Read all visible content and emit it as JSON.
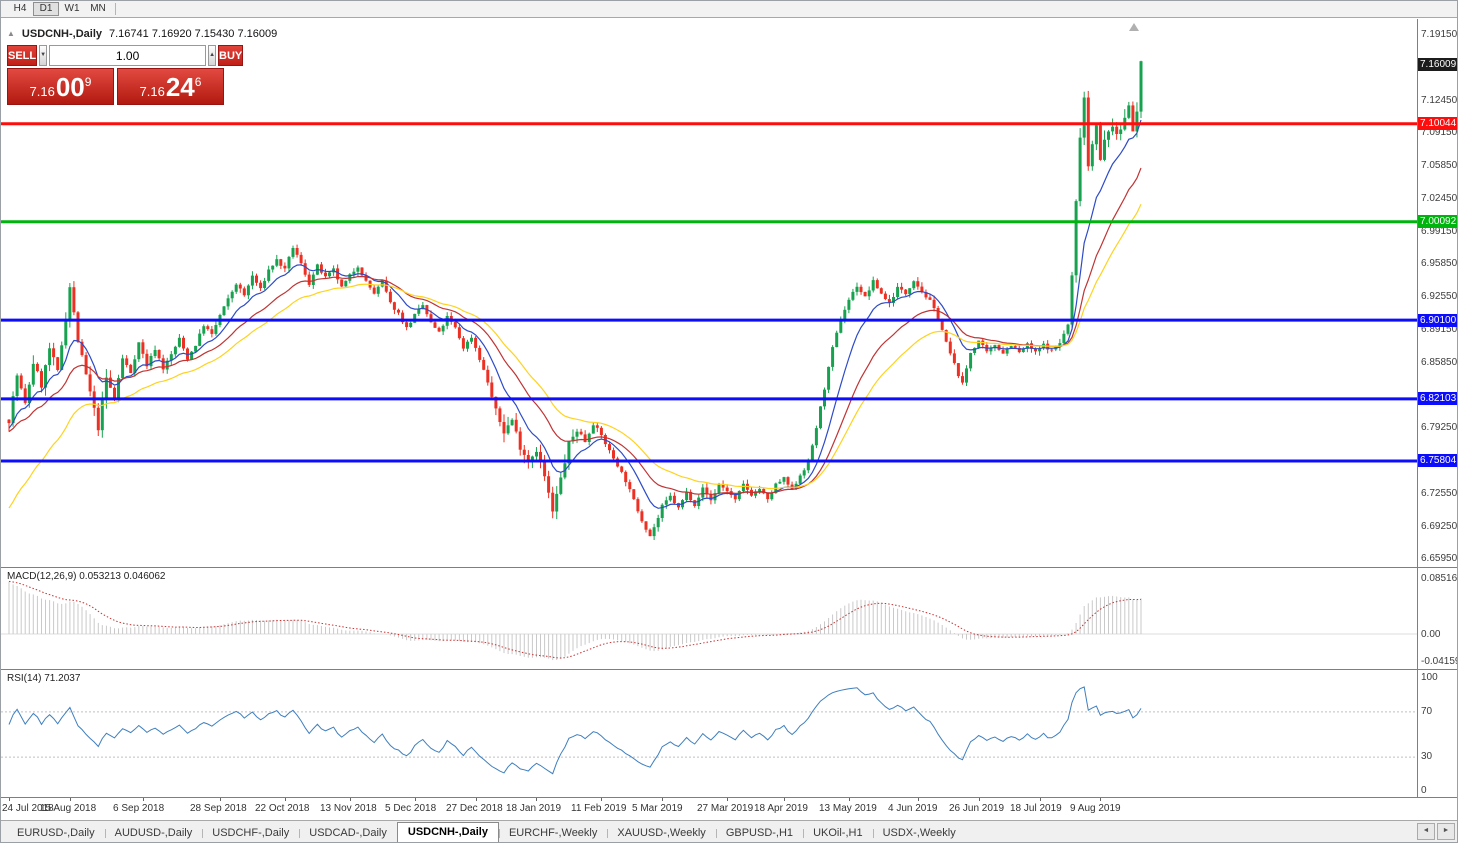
{
  "toolbar": {
    "timeframes": [
      {
        "label": "H4",
        "active": false
      },
      {
        "label": "D1",
        "active": true
      },
      {
        "label": "W1",
        "active": false
      },
      {
        "label": "MN",
        "active": false
      }
    ]
  },
  "icons": {
    "collapse_arrow": "▲",
    "spin_down": "▼",
    "spin_up": "▲",
    "tab_scroll_left": "◄",
    "tab_scroll_right": "►"
  },
  "quote_header": {
    "symbol": "USDCNH-,Daily",
    "ohlc": "7.16741 7.16920 7.15430 7.16009"
  },
  "trade_panel": {
    "sell_label": "SELL",
    "buy_label": "BUY",
    "volume": "1.00",
    "sell_price": {
      "prefix": "7.16",
      "big": "00",
      "sup": "9"
    },
    "buy_price": {
      "prefix": "7.16",
      "big": "24",
      "sup": "6"
    }
  },
  "price_axis": {
    "labels": [
      {
        "text": "7.19150",
        "price": 7.1915
      },
      {
        "text": "7.12450",
        "price": 7.1245
      },
      {
        "text": "7.09150",
        "price": 7.0915
      },
      {
        "text": "7.05850",
        "price": 7.0585
      },
      {
        "text": "7.02450",
        "price": 7.0245
      },
      {
        "text": "6.99150",
        "price": 6.9915
      },
      {
        "text": "6.95850",
        "price": 6.9585
      },
      {
        "text": "6.92550",
        "price": 6.9255
      },
      {
        "text": "6.89150",
        "price": 6.8915
      },
      {
        "text": "6.85850",
        "price": 6.8585
      },
      {
        "text": "6.79250",
        "price": 6.7925
      },
      {
        "text": "6.72550",
        "price": 6.7255
      },
      {
        "text": "6.69250",
        "price": 6.6925
      },
      {
        "text": "6.65950",
        "price": 6.6595
      }
    ],
    "tags": [
      {
        "text": "7.16009",
        "price": 7.16009,
        "bg": "#1c1c1c"
      },
      {
        "text": "7.10044",
        "price": 7.10044,
        "bg": "#fe0d0d"
      },
      {
        "text": "7.00092",
        "price": 7.00092,
        "bg": "#00b40e"
      },
      {
        "text": "6.90100",
        "price": 6.901,
        "bg": "#0d0dfe"
      },
      {
        "text": "6.82103",
        "price": 6.82103,
        "bg": "#0d0dfe"
      },
      {
        "text": "6.75804",
        "price": 6.75804,
        "bg": "#0d0dfe"
      }
    ]
  },
  "hlines": [
    {
      "price": 7.10044,
      "color": "#fe0d0d",
      "width": 3
    },
    {
      "price": 7.00092,
      "color": "#00b40e",
      "width": 3
    },
    {
      "price": 6.901,
      "color": "#0d0dfe",
      "width": 3
    },
    {
      "price": 6.82103,
      "color": "#0d0dfe",
      "width": 3
    },
    {
      "price": 6.75804,
      "color": "#0d0dfe",
      "width": 3
    }
  ],
  "macd_panel": {
    "label": "MACD(12,26,9) 0.053213 0.046062",
    "axis": [
      {
        "text": "0.085164",
        "value": 0.085164
      },
      {
        "text": "0.00",
        "value": 0
      },
      {
        "text": "-0.04159",
        "value": -0.04159
      }
    ]
  },
  "rsi_panel": {
    "label": "RSI(14) 71.2037",
    "axis": [
      {
        "text": "100",
        "value": 100
      },
      {
        "text": "70",
        "value": 70
      },
      {
        "text": "30",
        "value": 30
      },
      {
        "text": "0",
        "value": 0
      }
    ],
    "levels": [
      70,
      30
    ]
  },
  "time_axis": {
    "ticks": [
      {
        "label": "24 Jul 2018",
        "i": 0
      },
      {
        "label": "15 Aug 2018",
        "i": 15
      },
      {
        "label": "6 Sep 2018",
        "i": 33
      },
      {
        "label": "28 Sep 2018",
        "i": 52
      },
      {
        "label": "22 Oct 2018",
        "i": 68
      },
      {
        "label": "13 Nov 2018",
        "i": 84
      },
      {
        "label": "5 Dec 2018",
        "i": 100
      },
      {
        "label": "27 Dec 2018",
        "i": 115
      },
      {
        "label": "18 Jan 2019",
        "i": 130
      },
      {
        "label": "11 Feb 2019",
        "i": 146
      },
      {
        "label": "5 Mar 2019",
        "i": 161
      },
      {
        "label": "27 Mar 2019",
        "i": 177
      },
      {
        "label": "18 Apr 2019",
        "i": 191
      },
      {
        "label": "13 May 2019",
        "i": 207
      },
      {
        "label": "4 Jun 2019",
        "i": 224
      },
      {
        "label": "26 Jun 2019",
        "i": 239
      },
      {
        "label": "18 Jul 2019",
        "i": 254
      },
      {
        "label": "9 Aug 2019",
        "i": 269
      }
    ]
  },
  "tabs": [
    {
      "label": "EURUSD-,Daily",
      "active": false
    },
    {
      "label": "AUDUSD-,Daily",
      "active": false
    },
    {
      "label": "USDCHF-,Daily",
      "active": false
    },
    {
      "label": "USDCAD-,Daily",
      "active": false
    },
    {
      "label": "USDCNH-,Daily",
      "active": true
    },
    {
      "label": "EURCHF-,Weekly",
      "active": false
    },
    {
      "label": "XAUUSD-,Weekly",
      "active": false
    },
    {
      "label": "GBPUSD-,H1",
      "active": false
    },
    {
      "label": "UKOil-,H1",
      "active": false
    },
    {
      "label": "USDX-,Weekly",
      "active": false
    }
  ],
  "chart_data": {
    "type": "candlestick",
    "symbol": "USDCNH-",
    "timeframe": "Daily",
    "last_ohlc": {
      "open": 7.16741,
      "high": 7.1692,
      "low": 7.1543,
      "close": 7.16009
    },
    "bar_count": 280,
    "y_axis_range": [
      6.6504,
      7.2067
    ],
    "colors": {
      "up": "#17a24f",
      "down": "#ec3124"
    },
    "close_anchors": [
      [
        0,
        6.8
      ],
      [
        2,
        6.845
      ],
      [
        4,
        6.815
      ],
      [
        6,
        6.858
      ],
      [
        8,
        6.835
      ],
      [
        10,
        6.872
      ],
      [
        12,
        6.848
      ],
      [
        14,
        6.905
      ],
      [
        15,
        6.935
      ],
      [
        17,
        6.88
      ],
      [
        19,
        6.845
      ],
      [
        22,
        6.792
      ],
      [
        24,
        6.842
      ],
      [
        26,
        6.822
      ],
      [
        28,
        6.862
      ],
      [
        30,
        6.848
      ],
      [
        32,
        6.878
      ],
      [
        34,
        6.855
      ],
      [
        36,
        6.872
      ],
      [
        38,
        6.852
      ],
      [
        40,
        6.866
      ],
      [
        42,
        6.882
      ],
      [
        44,
        6.862
      ],
      [
        46,
        6.876
      ],
      [
        48,
        6.896
      ],
      [
        50,
        6.886
      ],
      [
        52,
        6.906
      ],
      [
        54,
        6.922
      ],
      [
        56,
        6.938
      ],
      [
        58,
        6.926
      ],
      [
        60,
        6.946
      ],
      [
        62,
        6.932
      ],
      [
        64,
        6.952
      ],
      [
        66,
        6.962
      ],
      [
        68,
        6.952
      ],
      [
        70,
        6.975
      ],
      [
        72,
        6.958
      ],
      [
        74,
        6.938
      ],
      [
        76,
        6.956
      ],
      [
        78,
        6.944
      ],
      [
        80,
        6.952
      ],
      [
        82,
        6.934
      ],
      [
        84,
        6.946
      ],
      [
        86,
        6.956
      ],
      [
        88,
        6.94
      ],
      [
        90,
        6.928
      ],
      [
        92,
        6.94
      ],
      [
        94,
        6.918
      ],
      [
        96,
        6.908
      ],
      [
        98,
        6.893
      ],
      [
        100,
        6.906
      ],
      [
        102,
        6.916
      ],
      [
        104,
        6.898
      ],
      [
        106,
        6.888
      ],
      [
        108,
        6.904
      ],
      [
        110,
        6.893
      ],
      [
        112,
        6.873
      ],
      [
        114,
        6.884
      ],
      [
        116,
        6.862
      ],
      [
        118,
        6.838
      ],
      [
        120,
        6.808
      ],
      [
        122,
        6.788
      ],
      [
        124,
        6.8
      ],
      [
        126,
        6.773
      ],
      [
        128,
        6.758
      ],
      [
        130,
        6.77
      ],
      [
        132,
        6.742
      ],
      [
        134,
        6.706
      ],
      [
        136,
        6.74
      ],
      [
        138,
        6.775
      ],
      [
        140,
        6.79
      ],
      [
        142,
        6.778
      ],
      [
        144,
        6.796
      ],
      [
        146,
        6.784
      ],
      [
        148,
        6.768
      ],
      [
        150,
        6.754
      ],
      [
        152,
        6.738
      ],
      [
        154,
        6.718
      ],
      [
        156,
        6.698
      ],
      [
        158,
        6.682
      ],
      [
        160,
        6.7
      ],
      [
        161,
        6.712
      ],
      [
        163,
        6.722
      ],
      [
        165,
        6.71
      ],
      [
        167,
        6.726
      ],
      [
        169,
        6.714
      ],
      [
        171,
        6.73
      ],
      [
        173,
        6.718
      ],
      [
        175,
        6.734
      ],
      [
        177,
        6.728
      ],
      [
        179,
        6.718
      ],
      [
        181,
        6.734
      ],
      [
        183,
        6.724
      ],
      [
        185,
        6.73
      ],
      [
        187,
        6.718
      ],
      [
        189,
        6.734
      ],
      [
        191,
        6.74
      ],
      [
        193,
        6.728
      ],
      [
        195,
        6.744
      ],
      [
        197,
        6.756
      ],
      [
        199,
        6.792
      ],
      [
        201,
        6.832
      ],
      [
        203,
        6.872
      ],
      [
        205,
        6.902
      ],
      [
        207,
        6.922
      ],
      [
        209,
        6.936
      ],
      [
        211,
        6.924
      ],
      [
        213,
        6.94
      ],
      [
        215,
        6.928
      ],
      [
        217,
        6.918
      ],
      [
        219,
        6.934
      ],
      [
        221,
        6.928
      ],
      [
        223,
        6.942
      ],
      [
        225,
        6.93
      ],
      [
        227,
        6.92
      ],
      [
        229,
        6.904
      ],
      [
        231,
        6.878
      ],
      [
        233,
        6.856
      ],
      [
        235,
        6.836
      ],
      [
        237,
        6.868
      ],
      [
        239,
        6.88
      ],
      [
        241,
        6.868
      ],
      [
        243,
        6.876
      ],
      [
        245,
        6.868
      ],
      [
        247,
        6.876
      ],
      [
        249,
        6.868
      ],
      [
        251,
        6.876
      ],
      [
        253,
        6.868
      ],
      [
        255,
        6.876
      ],
      [
        257,
        6.87
      ],
      [
        259,
        6.878
      ],
      [
        261,
        6.896
      ],
      [
        262,
        6.945
      ],
      [
        263,
        7.02
      ],
      [
        264,
        7.09
      ],
      [
        265,
        7.128
      ],
      [
        266,
        7.058
      ],
      [
        267,
        7.082
      ],
      [
        268,
        7.102
      ],
      [
        269,
        7.062
      ],
      [
        270,
        7.082
      ],
      [
        271,
        7.092
      ],
      [
        272,
        7.1
      ],
      [
        273,
        7.086
      ],
      [
        274,
        7.096
      ],
      [
        275,
        7.106
      ],
      [
        276,
        7.122
      ],
      [
        277,
        7.096
      ],
      [
        278,
        7.112
      ],
      [
        279,
        7.16
      ]
    ],
    "moving_averages": [
      {
        "name": "fast",
        "period": 10,
        "color": "#2d4bc8",
        "start": 6.79
      },
      {
        "name": "medium",
        "period": 22,
        "color": "#c03434",
        "start": 6.787
      },
      {
        "name": "slow",
        "period": 34,
        "color": "#ffd21f",
        "start": 6.705
      }
    ],
    "indicators": {
      "macd": {
        "params": "12,26,9",
        "main": 0.053213,
        "signal": 0.046062,
        "seed": [
          6.8,
          6.714,
          0.08
        ]
      },
      "rsi": {
        "params": "14",
        "current": 71.2037
      }
    }
  }
}
